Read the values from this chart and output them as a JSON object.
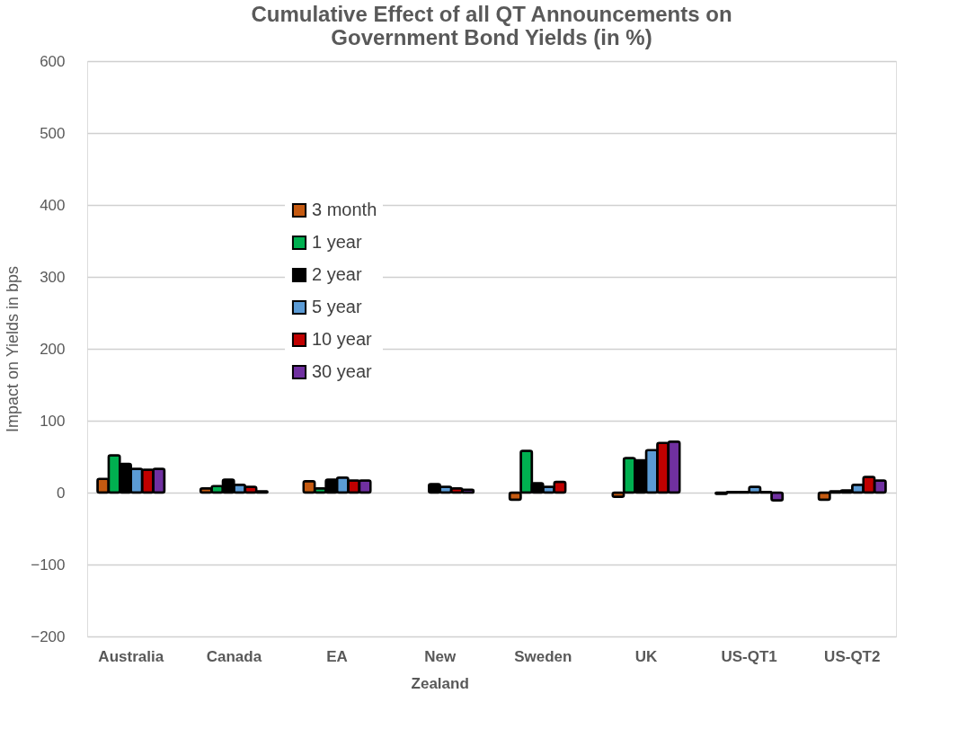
{
  "chart_data": {
    "type": "bar",
    "title": [
      "Cumulative Effect of all QT Announcements on",
      "Government Bond Yields (in %)"
    ],
    "ylabel": "Impact on Yields in bps",
    "categories": [
      "Australia",
      "Canada",
      "EA",
      "New Zealand",
      "Sweden",
      "UK",
      "US-QT1",
      "US-QT2"
    ],
    "series": [
      {
        "name": "3 month",
        "color": "#c55a11",
        "values": [
          19,
          6,
          16,
          null,
          -10,
          -6,
          -2,
          -10
        ]
      },
      {
        "name": "1 year",
        "color": "#00b050",
        "values": [
          52,
          9,
          6,
          null,
          58,
          48,
          1,
          2
        ]
      },
      {
        "name": "2 year",
        "color": "#000000",
        "values": [
          40,
          18,
          18,
          12,
          13,
          45,
          1,
          3
        ]
      },
      {
        "name": "5 year",
        "color": "#5b9bd5",
        "values": [
          33,
          11,
          21,
          8,
          8,
          59,
          8,
          11
        ]
      },
      {
        "name": "10 year",
        "color": "#c00000",
        "values": [
          32,
          8,
          17,
          6,
          15,
          69,
          1,
          22
        ]
      },
      {
        "name": "30 year",
        "color": "#7030a0",
        "values": [
          33,
          2,
          17,
          4,
          null,
          71,
          -11,
          17
        ]
      }
    ],
    "ylim": [
      -200,
      600
    ],
    "yticks": [
      -200,
      -100,
      0,
      100,
      200,
      300,
      400,
      500,
      600
    ],
    "grid": "y",
    "legend": "left"
  }
}
